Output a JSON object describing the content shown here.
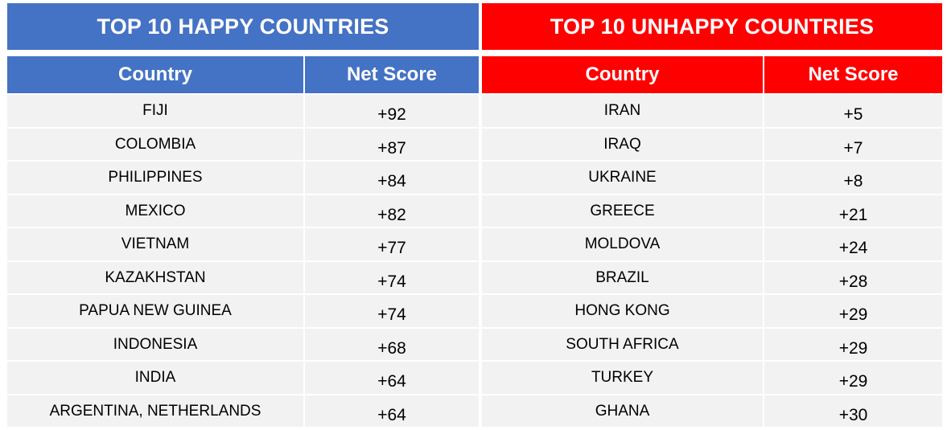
{
  "happy": {
    "title": "TOP 10 HAPPY COUNTRIES",
    "col_country": "Country",
    "col_score": "Net Score",
    "rows": [
      {
        "country": "FIJI",
        "score": "+92"
      },
      {
        "country": "COLOMBIA",
        "score": "+87"
      },
      {
        "country": "PHILIPPINES",
        "score": "+84"
      },
      {
        "country": "MEXICO",
        "score": "+82"
      },
      {
        "country": "VIETNAM",
        "score": "+77"
      },
      {
        "country": "KAZAKHSTAN",
        "score": "+74"
      },
      {
        "country": "PAPUA NEW GUINEA",
        "score": "+74"
      },
      {
        "country": "INDONESIA",
        "score": "+68"
      },
      {
        "country": "INDIA",
        "score": "+64"
      },
      {
        "country": "ARGENTINA, NETHERLANDS",
        "score": "+64"
      }
    ]
  },
  "unhappy": {
    "title": "TOP 10 UNHAPPY COUNTRIES",
    "col_country": "Country",
    "col_score": "Net Score",
    "rows": [
      {
        "country": "IRAN",
        "score": "+5"
      },
      {
        "country": "IRAQ",
        "score": "+7"
      },
      {
        "country": "UKRAINE",
        "score": "+8"
      },
      {
        "country": "GREECE",
        "score": "+21"
      },
      {
        "country": "MOLDOVA",
        "score": "+24"
      },
      {
        "country": "BRAZIL",
        "score": "+28"
      },
      {
        "country": "HONG KONG",
        "score": "+29"
      },
      {
        "country": "SOUTH AFRICA",
        "score": "+29"
      },
      {
        "country": "TURKEY",
        "score": "+29"
      },
      {
        "country": "GHANA",
        "score": "+30"
      }
    ]
  },
  "colors": {
    "happy_header": "#4472c4",
    "unhappy_header": "#ff0000",
    "row_bg": "#f2f2f2"
  }
}
